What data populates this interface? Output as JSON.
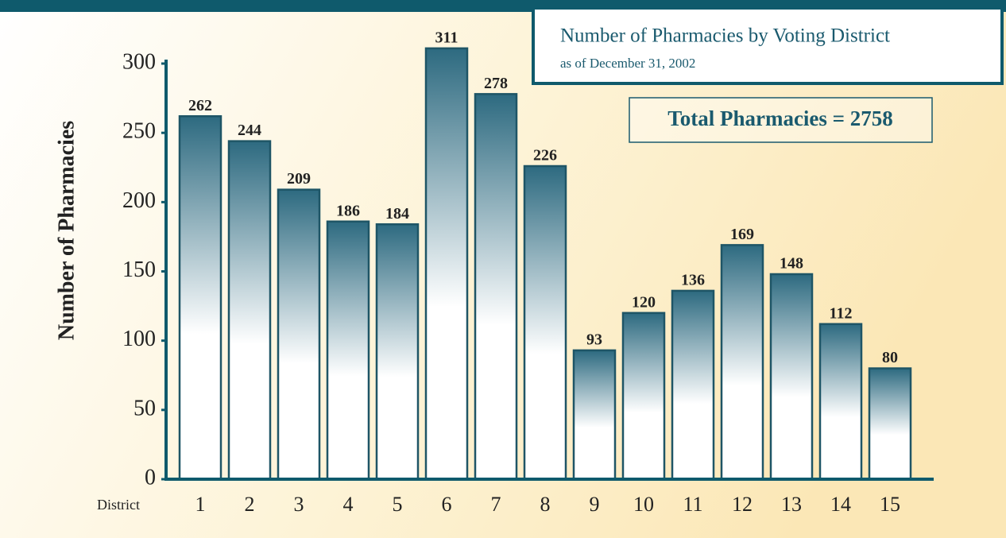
{
  "chart_data": {
    "type": "bar",
    "title": "Number of Pharmacies by Voting District",
    "subtitle": "as of December 31, 2002",
    "annotation": "Total Pharmacies = 2758",
    "y_label": "Number of Pharmacies",
    "x_label": "District",
    "categories": [
      "1",
      "2",
      "3",
      "4",
      "5",
      "6",
      "7",
      "8",
      "9",
      "10",
      "11",
      "12",
      "13",
      "14",
      "15"
    ],
    "values": [
      262,
      244,
      209,
      186,
      184,
      311,
      278,
      226,
      93,
      120,
      136,
      169,
      148,
      112,
      80
    ],
    "color": "#2d6a80",
    "ylim": [
      0,
      300
    ],
    "yticks": [
      0,
      50,
      100,
      150,
      200,
      250,
      300
    ],
    "grid": false
  }
}
